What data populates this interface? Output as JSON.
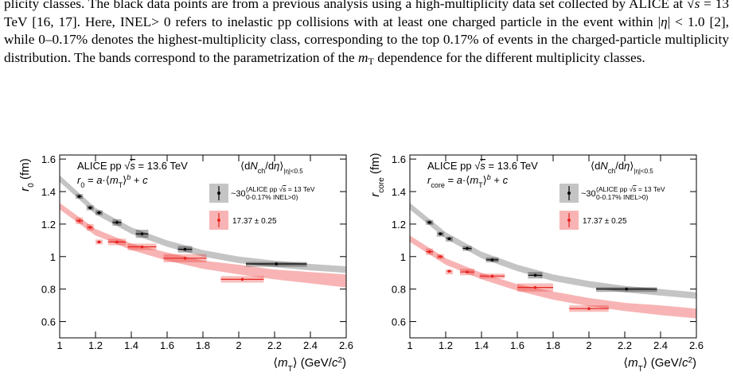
{
  "paragraph": {
    "segments": [
      "plicity classes. The black data points are from a previous analysis using a high-multiplicity data set collected by ALICE at ",
      "√",
      "s",
      " = 13 TeV [16, 17]. Here, INEL> 0 refers to inelastic pp collisions with at least one charged particle in the event within |",
      "η",
      "| < 1.0 [2], while 0–0.17% denotes the highest-multiplicity class, corresponding to the top 0.17% of events in the charged-particle multiplicity distribution. The bands correspond to the parametrization of the ",
      "m",
      "T",
      " dependence for the different multiplicity classes."
    ]
  },
  "chart_data": [
    {
      "type": "scatter",
      "experiment": [
        "ALICE pp ",
        "√",
        "s",
        " = 13.6 TeV"
      ],
      "formula": [
        "r",
        "0",
        " = ",
        "a",
        "·⟨",
        "m",
        "T",
        "⟩",
        "b",
        " + ",
        "c"
      ],
      "legend_title": [
        "⟨d",
        "N",
        "ch",
        "/d",
        "η",
        "⟩",
        "|η|<0.5"
      ],
      "y_label": [
        "r",
        "0",
        " (fm)"
      ],
      "x_label": [
        "⟨",
        "m",
        "T",
        "⟩ (GeV/",
        "c",
        "2",
        ")"
      ],
      "xlim": [
        1,
        2.6
      ],
      "xticks": [
        1,
        1.2,
        1.4,
        1.6,
        1.8,
        2,
        2.2,
        2.4,
        2.6
      ],
      "ylim": [
        0.5,
        1.625
      ],
      "yticks": [
        0.6,
        0.8,
        1,
        1.2,
        1.4,
        1.6
      ],
      "series": [
        {
          "name": "~30",
          "note": [
            "(ALICE pp ",
            "√",
            "s",
            " = 13 TeV",
            "0-0.17% INEL>0)"
          ],
          "color": "#000000",
          "band_color": "#c4c4c4",
          "x": [
            1.11,
            1.17,
            1.22,
            1.32,
            1.46,
            1.7,
            2.21
          ],
          "values": [
            1.37,
            1.3,
            1.27,
            1.21,
            1.14,
            1.045,
            0.955
          ],
          "xerr": [
            0.012,
            0.012,
            0.012,
            0.025,
            0.035,
            0.04,
            0.17
          ],
          "syserr": [
            0.015,
            0.015,
            0.015,
            0.02,
            0.025,
            0.02,
            0.012
          ],
          "band_x": [
            1,
            1.2,
            1.4,
            1.6,
            1.8,
            2,
            2.2,
            2.4,
            2.6
          ],
          "band_low": [
            1.46,
            1.26,
            1.14,
            1.06,
            1.0,
            0.96,
            0.935,
            0.915,
            0.9
          ],
          "band_high": [
            1.5,
            1.3,
            1.18,
            1.1,
            1.04,
            1.0,
            0.975,
            0.955,
            0.94
          ]
        },
        {
          "name": "17.37 ± 0.25",
          "color": "#e8231f",
          "band_color": "#f8b4b4",
          "x": [
            1.11,
            1.17,
            1.22,
            1.32,
            1.46,
            1.7,
            2.02
          ],
          "values": [
            1.22,
            1.18,
            1.09,
            1.09,
            1.06,
            0.99,
            0.86
          ],
          "xerr": [
            0.02,
            0.015,
            0.012,
            0.05,
            0.08,
            0.12,
            0.12
          ],
          "syserr": [
            0.02,
            0.02,
            0.015,
            0.02,
            0.02,
            0.025,
            0.02
          ],
          "band_x": [
            1,
            1.2,
            1.4,
            1.6,
            1.8,
            2,
            2.2,
            2.4,
            2.6
          ],
          "band_low": [
            1.29,
            1.13,
            1.04,
            0.975,
            0.925,
            0.89,
            0.86,
            0.835,
            0.81
          ],
          "band_high": [
            1.33,
            1.17,
            1.08,
            1.025,
            0.975,
            0.95,
            0.92,
            0.905,
            0.89
          ]
        }
      ]
    },
    {
      "type": "scatter",
      "experiment": [
        "ALICE pp ",
        "√",
        "s",
        " = 13.6 TeV"
      ],
      "formula": [
        "r",
        "core",
        " = ",
        "a",
        "·⟨",
        "m",
        "T",
        "⟩",
        "b",
        " + ",
        "c"
      ],
      "legend_title": [
        "⟨d",
        "N",
        "ch",
        "/d",
        "η",
        "⟩",
        "|η|<0.5"
      ],
      "y_label": [
        "r",
        "core",
        " (fm)"
      ],
      "x_label": [
        "⟨",
        "m",
        "T",
        "⟩ (GeV/",
        "c",
        "2",
        ")"
      ],
      "xlim": [
        1,
        2.6
      ],
      "xticks": [
        1,
        1.2,
        1.4,
        1.6,
        1.8,
        2,
        2.2,
        2.4,
        2.6
      ],
      "ylim": [
        0.5,
        1.625
      ],
      "yticks": [
        0.6,
        0.8,
        1,
        1.2,
        1.4,
        1.6
      ],
      "series": [
        {
          "name": "~30",
          "note": [
            "(ALICE pp ",
            "√",
            "s",
            " = 13 TeV",
            "0-0.17% INEL>0)"
          ],
          "color": "#000000",
          "band_color": "#c4c4c4",
          "x": [
            1.11,
            1.17,
            1.22,
            1.32,
            1.46,
            1.7,
            2.21
          ],
          "values": [
            1.21,
            1.14,
            1.11,
            1.05,
            0.98,
            0.885,
            0.8
          ],
          "xerr": [
            0.012,
            0.012,
            0.012,
            0.025,
            0.035,
            0.04,
            0.17
          ],
          "syserr": [
            0.015,
            0.012,
            0.012,
            0.015,
            0.015,
            0.02,
            0.012
          ],
          "band_x": [
            1,
            1.2,
            1.4,
            1.6,
            1.8,
            2,
            2.2,
            2.4,
            2.6
          ],
          "band_low": [
            1.29,
            1.11,
            0.99,
            0.91,
            0.85,
            0.81,
            0.78,
            0.76,
            0.74
          ],
          "band_high": [
            1.33,
            1.15,
            1.03,
            0.95,
            0.89,
            0.85,
            0.82,
            0.8,
            0.78
          ]
        },
        {
          "name": "17.37 ± 0.25",
          "color": "#e8231f",
          "band_color": "#f8b4b4",
          "x": [
            1.11,
            1.17,
            1.22,
            1.32,
            1.46,
            1.7,
            2.0
          ],
          "values": [
            1.03,
            1.0,
            0.91,
            0.905,
            0.88,
            0.81,
            0.68
          ],
          "xerr": [
            0.02,
            0.015,
            0.012,
            0.04,
            0.07,
            0.1,
            0.11
          ],
          "syserr": [
            0.02,
            0.015,
            0.01,
            0.02,
            0.015,
            0.025,
            0.02
          ],
          "band_x": [
            1,
            1.2,
            1.4,
            1.6,
            1.8,
            2,
            2.2,
            2.4,
            2.6
          ],
          "band_low": [
            1.09,
            0.95,
            0.86,
            0.79,
            0.735,
            0.695,
            0.665,
            0.64,
            0.62
          ],
          "band_high": [
            1.13,
            0.99,
            0.9,
            0.83,
            0.785,
            0.745,
            0.715,
            0.7,
            0.68
          ]
        }
      ]
    }
  ]
}
